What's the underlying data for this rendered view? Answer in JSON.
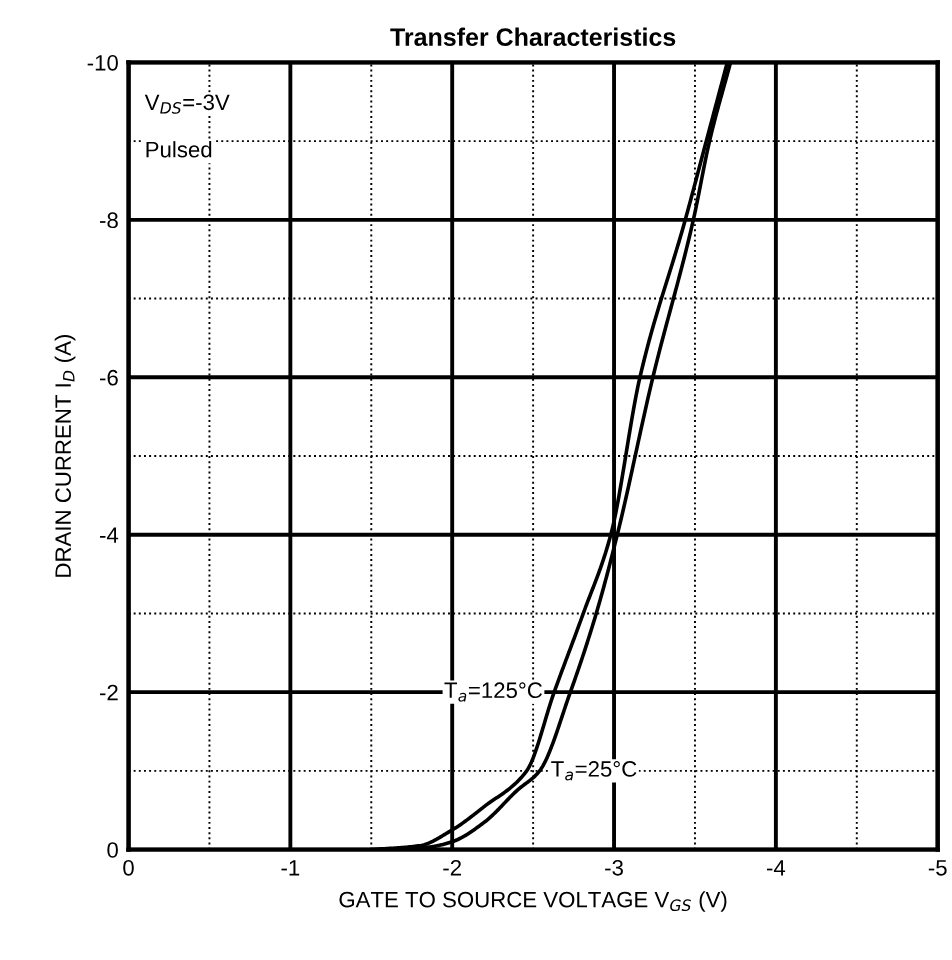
{
  "chart_data": {
    "type": "line",
    "title": "Transfer Characteristics",
    "xlabel": "GATE TO SOURCE VOLTAGE V$_{GS}$ (V)",
    "ylabel": "DRAIN CURRENT I$_{D}$ (A)",
    "xlim": [
      0,
      -5
    ],
    "ylim": [
      0,
      -10
    ],
    "xticks": [
      0,
      {
        "value": -0.5,
        "label": null
      },
      -1,
      {
        "value": -1.5,
        "label": null
      },
      -2,
      {
        "value": -2.5,
        "label": null
      },
      -3,
      {
        "value": -3.5,
        "label": null
      },
      -4,
      {
        "value": -4.5,
        "label": null
      },
      -5
    ],
    "yticks": [
      0,
      {
        "value": -1,
        "label": null
      },
      -2,
      {
        "value": -3,
        "label": null
      },
      -4,
      {
        "value": -5,
        "label": null
      },
      -6,
      {
        "value": -7,
        "label": null
      },
      -8,
      {
        "value": -9,
        "label": null
      },
      -10
    ],
    "grid": true,
    "marker": "none",
    "line_style": "solid",
    "series": [
      {
        "name": "T$_{a}$=125°C",
        "color": "#000000",
        "x": [
          -1.5,
          -1.8,
          -2.0,
          -2.2,
          -2.46,
          -2.63,
          -2.81,
          -2.98,
          -3.16,
          -3.44,
          -3.57,
          -3.7
        ],
        "values": [
          0,
          -0.05,
          -0.25,
          -0.55,
          -1,
          -2,
          -3,
          -4,
          -6,
          -8,
          -9,
          -10
        ]
      },
      {
        "name": "T$_{a}$=25°C",
        "color": "#000000",
        "x": [
          -1.6,
          -1.85,
          -2.0,
          -2.2,
          -2.4,
          -2.54,
          -2.73,
          -2.89,
          -3.02,
          -3.24,
          -3.49,
          -3.59,
          -3.72
        ],
        "values": [
          0,
          -0.03,
          -0.1,
          -0.35,
          -0.75,
          -1,
          -2,
          -3,
          -4,
          -6,
          -8,
          -9,
          -10
        ]
      }
    ],
    "annotations": [
      "V$_{DS}$=-3V",
      "Pulsed"
    ]
  }
}
